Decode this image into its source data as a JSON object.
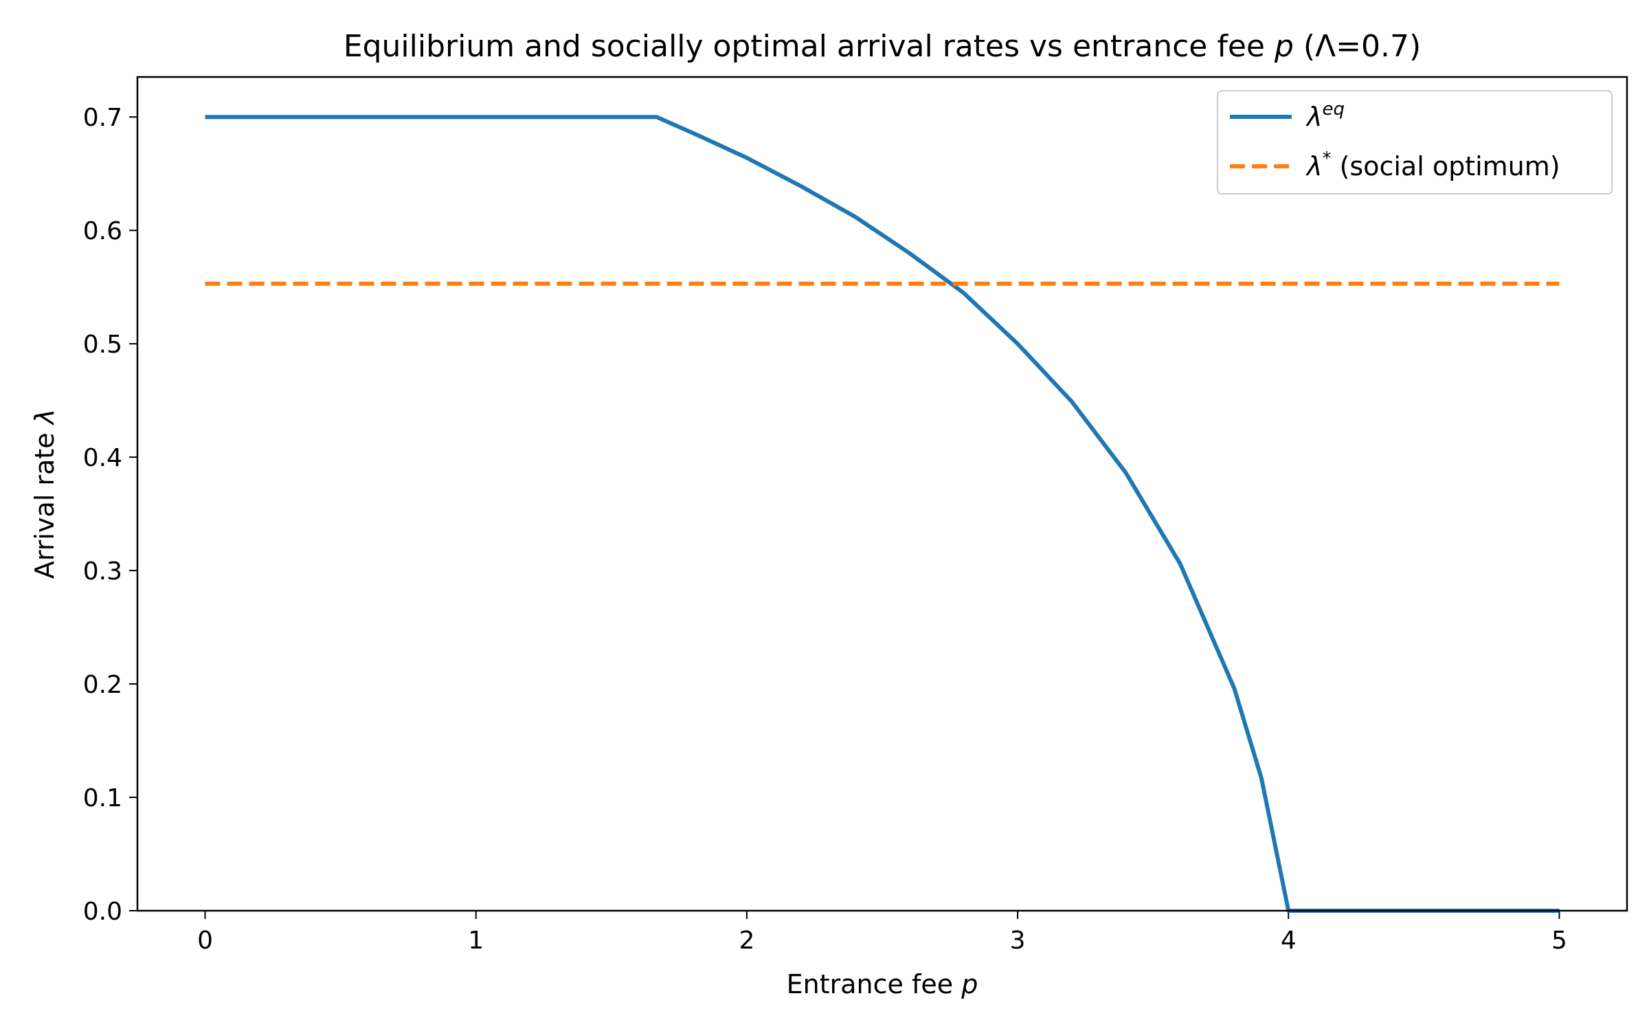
{
  "chart_data": {
    "type": "line",
    "title": "Equilibrium and socially optimal arrival rates vs entrance fee p (Λ=0.7)",
    "title_parts": {
      "before": "Equilibrium and socially optimal arrival rates vs entrance fee ",
      "italic": "p",
      "after": " (Λ=0.7)"
    },
    "xlabel": "Entrance fee p",
    "xlabel_parts": {
      "before": "Entrance fee ",
      "italic": "p"
    },
    "ylabel": "Arrival rate λ",
    "ylabel_parts": {
      "before": "Arrival rate ",
      "italic": "λ"
    },
    "xlim": [
      -0.25,
      5.25
    ],
    "ylim": [
      0.0,
      0.7353
    ],
    "xticks": [
      0,
      1,
      2,
      3,
      4,
      5
    ],
    "xtick_labels": [
      "0",
      "1",
      "2",
      "3",
      "4",
      "5"
    ],
    "yticks": [
      0.0,
      0.1,
      0.2,
      0.3,
      0.4,
      0.5,
      0.6,
      0.7
    ],
    "ytick_labels": [
      "0.0",
      "0.1",
      "0.2",
      "0.3",
      "0.4",
      "0.5",
      "0.6",
      "0.7"
    ],
    "grid": false,
    "legend_position": "top-right",
    "series": [
      {
        "name": "λ^eq",
        "legend_symbol": "λ",
        "legend_sup": "eq",
        "legend_text": "",
        "color": "#1f77b4",
        "style": "solid",
        "x": [
          0,
          0.5,
          1,
          1.5,
          1.667,
          1.8,
          2,
          2.2,
          2.4,
          2.6,
          2.8,
          3,
          3.2,
          3.4,
          3.6,
          3.8,
          3.9,
          4,
          4.5,
          5
        ],
        "y": [
          0.7,
          0.7,
          0.7,
          0.7,
          0.7,
          0.686,
          0.664,
          0.639,
          0.612,
          0.58,
          0.545,
          0.5,
          0.449,
          0.386,
          0.306,
          0.196,
          0.117,
          0.0,
          0.0,
          0.0
        ]
      },
      {
        "name": "λ* (social optimum)",
        "legend_symbol": "λ",
        "legend_sup": "*",
        "legend_text": "(social optimum)",
        "color": "#ff7f0e",
        "style": "dashed",
        "x": [
          0,
          5
        ],
        "y": [
          0.553,
          0.553
        ]
      }
    ]
  }
}
